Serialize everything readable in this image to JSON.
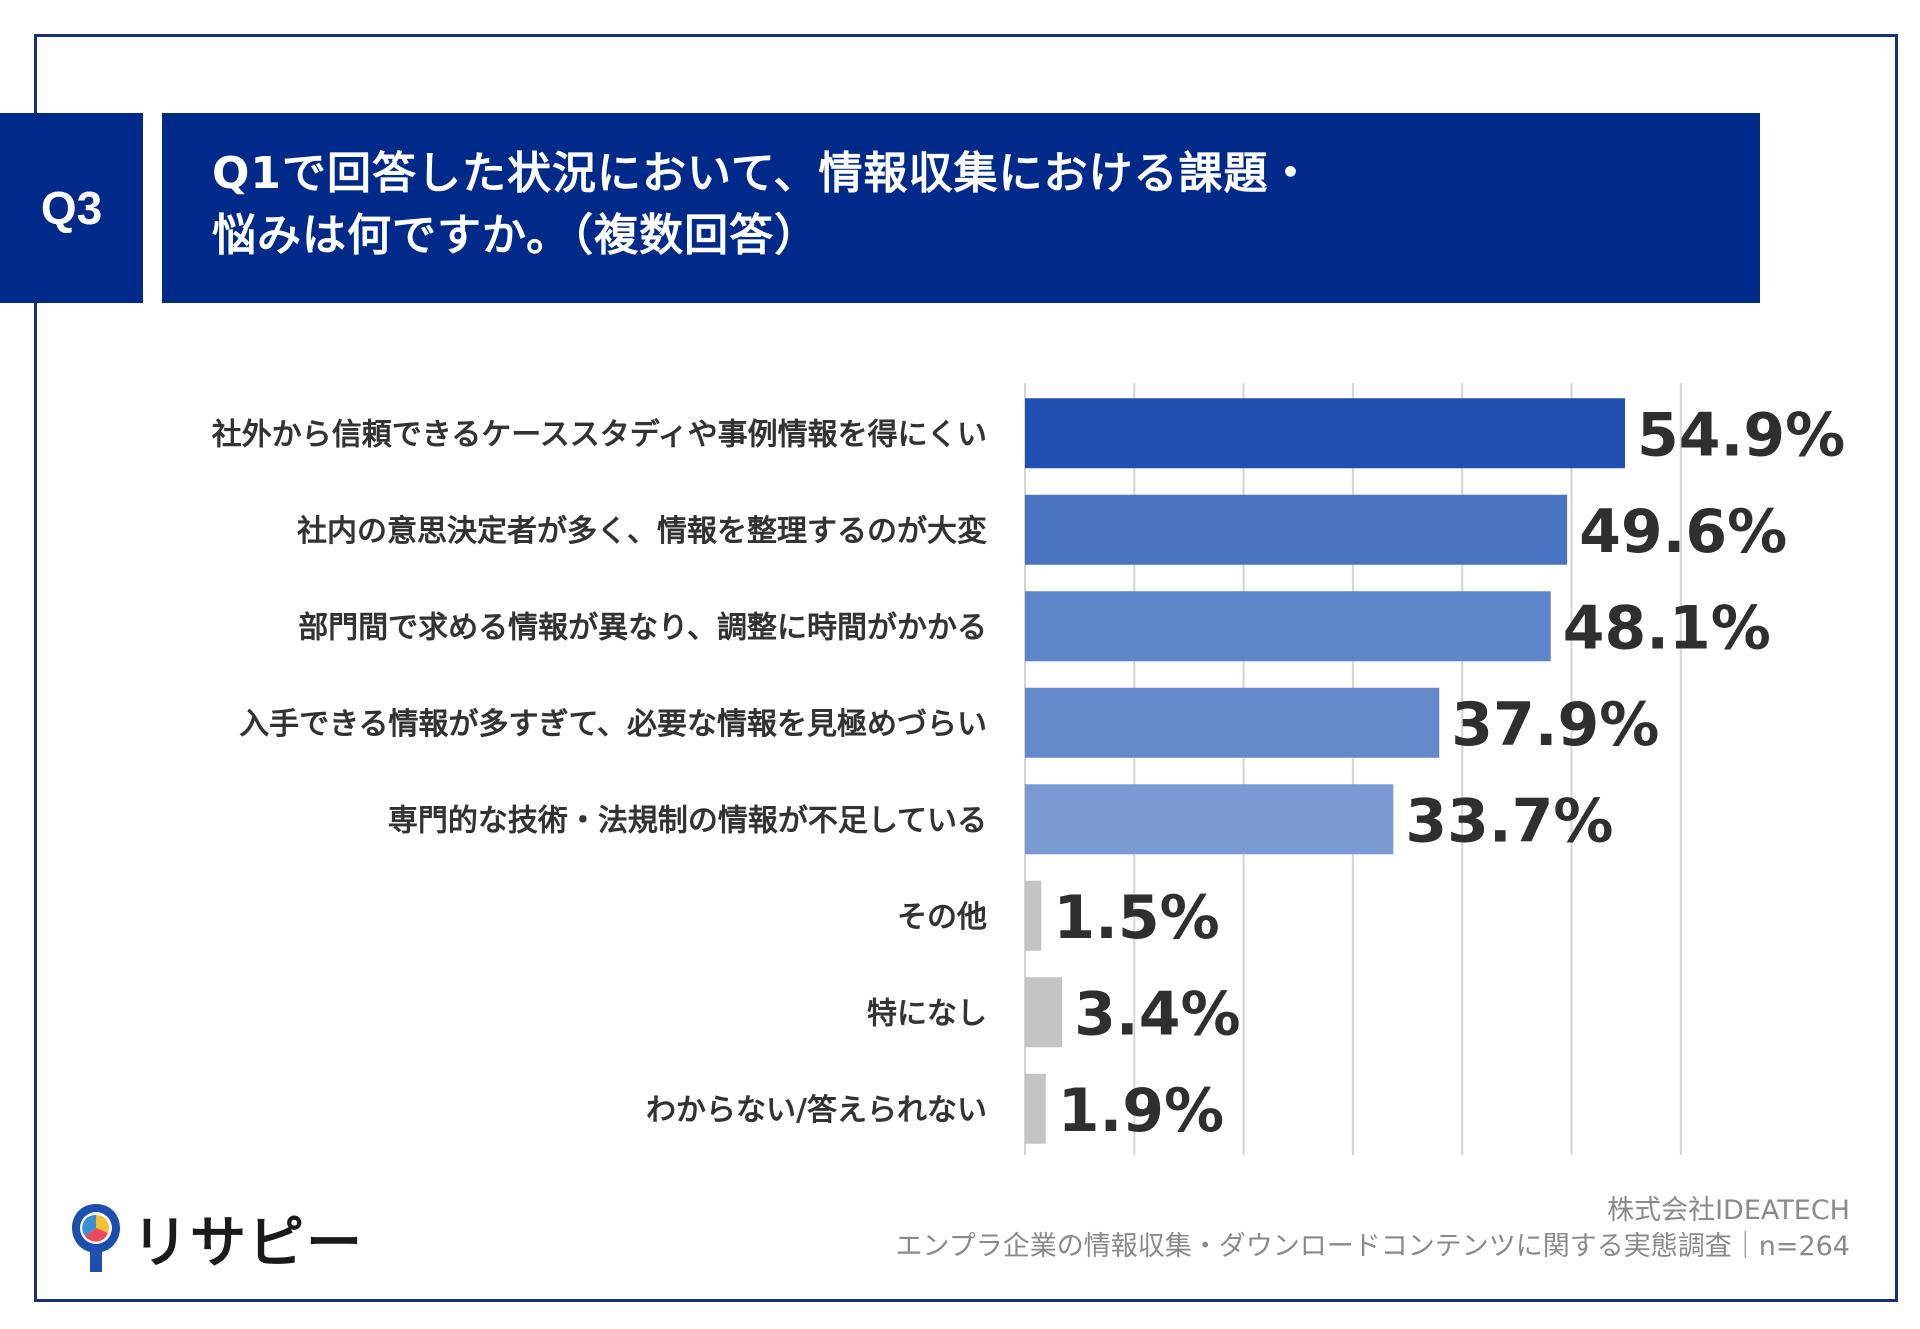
{
  "question": {
    "badge": "Q3",
    "line1": "Q1で回答した状況において、情報収集における課題・",
    "line2": "悩みは何ですか。（複数回答）"
  },
  "chart_data": {
    "type": "bar",
    "orientation": "horizontal",
    "categories": [
      "社外から信頼できるケーススタディや事例情報を得にくい",
      "社内の意思決定者が多く、情報を整理するのが大変",
      "部門間で求める情報が異なり、調整に時間がかかる",
      "入手できる情報が多すぎて、必要な情報を見極めづらい",
      "専門的な技術・法規制の情報が不足している",
      "その他",
      "特になし",
      "わからない/答えられない"
    ],
    "values": [
      54.9,
      49.6,
      48.1,
      37.9,
      33.7,
      1.5,
      3.4,
      1.9
    ],
    "value_labels": [
      "54.9%",
      "49.6%",
      "48.1%",
      "37.9%",
      "33.7%",
      "1.5%",
      "3.4%",
      "1.9%"
    ],
    "colors": [
      "#1f4faf",
      "#4a74c1",
      "#5d85c9",
      "#6689cb",
      "#7b99d2",
      "#c4c4c4",
      "#c4c4c4",
      "#c4c4c4"
    ],
    "xlim": [
      0,
      60
    ],
    "grid": true
  },
  "footer": {
    "company": "株式会社IDEATECH",
    "survey": "エンプラ企業の情報収集・ダウンロードコンテンツに関する実態調査｜n=264"
  },
  "logo": {
    "text": "リサピー",
    "icon": "pin-icon"
  }
}
